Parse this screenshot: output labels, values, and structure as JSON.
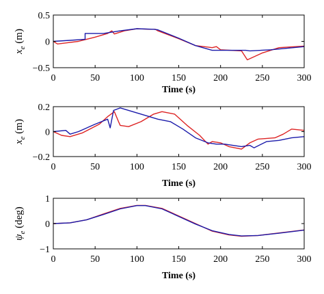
{
  "colors": {
    "series_1": "#dd2222",
    "series_2": "#1a1aaa",
    "axes": "#000000"
  },
  "chart_data": [
    {
      "type": "line",
      "ylabel_main": "x",
      "ylabel_sub": "e",
      "ylabel_unit": " (m)",
      "xlabel": "Time (s)",
      "xlim": [
        0,
        300
      ],
      "ylim": [
        -0.5,
        0.5
      ],
      "xticks": [
        0,
        50,
        100,
        150,
        200,
        250,
        300
      ],
      "xtick_labels": [
        "0",
        "50",
        "100",
        "150",
        "200",
        "250",
        "300"
      ],
      "yticks": [
        0.5,
        0,
        -0.5
      ],
      "ytick_labels": [
        "0.5",
        "0",
        "−0.5"
      ],
      "grid": false,
      "series": [
        {
          "color": "#dd2222",
          "points": [
            [
              0,
              0.0
            ],
            [
              5,
              -0.05
            ],
            [
              15,
              -0.03
            ],
            [
              30,
              0.0
            ],
            [
              50,
              0.08
            ],
            [
              65,
              0.15
            ],
            [
              70,
              0.2
            ],
            [
              73,
              0.14
            ],
            [
              85,
              0.2
            ],
            [
              100,
              0.24
            ],
            [
              115,
              0.23
            ],
            [
              122,
              0.23
            ],
            [
              125,
              0.2
            ],
            [
              150,
              0.05
            ],
            [
              170,
              -0.08
            ],
            [
              190,
              -0.12
            ],
            [
              195,
              -0.1
            ],
            [
              200,
              -0.16
            ],
            [
              225,
              -0.18
            ],
            [
              232,
              -0.35
            ],
            [
              250,
              -0.22
            ],
            [
              270,
              -0.12
            ],
            [
              300,
              -0.09
            ]
          ]
        },
        {
          "color": "#1a1aaa",
          "points": [
            [
              0,
              0.0
            ],
            [
              20,
              0.02
            ],
            [
              38,
              0.04
            ],
            [
              38,
              0.15
            ],
            [
              60,
              0.15
            ],
            [
              80,
              0.2
            ],
            [
              100,
              0.24
            ],
            [
              120,
              0.23
            ],
            [
              125,
              0.22
            ],
            [
              150,
              0.06
            ],
            [
              170,
              -0.08
            ],
            [
              190,
              -0.17
            ],
            [
              230,
              -0.17
            ],
            [
              235,
              -0.18
            ],
            [
              260,
              -0.16
            ],
            [
              300,
              -0.1
            ]
          ]
        }
      ]
    },
    {
      "type": "line",
      "ylabel_main": "x",
      "ylabel_sub": "e",
      "ylabel_unit": " (m)",
      "xlabel": "Time (s)",
      "xlim": [
        0,
        300
      ],
      "ylim": [
        -0.2,
        0.2
      ],
      "xticks": [
        0,
        50,
        100,
        150,
        200,
        250,
        300
      ],
      "xtick_labels": [
        "0",
        "50",
        "100",
        "150",
        "200",
        "250",
        "300"
      ],
      "yticks": [
        0.2,
        0,
        -0.2
      ],
      "ytick_labels": [
        "0.2",
        "0",
        "−0.2"
      ],
      "grid": false,
      "series": [
        {
          "color": "#dd2222",
          "points": [
            [
              0,
              0.0
            ],
            [
              10,
              -0.03
            ],
            [
              20,
              -0.04
            ],
            [
              35,
              -0.01
            ],
            [
              55,
              0.06
            ],
            [
              65,
              0.12
            ],
            [
              73,
              0.16
            ],
            [
              78,
              0.08
            ],
            [
              80,
              0.05
            ],
            [
              90,
              0.04
            ],
            [
              105,
              0.08
            ],
            [
              120,
              0.14
            ],
            [
              130,
              0.16
            ],
            [
              145,
              0.14
            ],
            [
              160,
              0.05
            ],
            [
              175,
              -0.03
            ],
            [
              185,
              -0.1
            ],
            [
              190,
              -0.08
            ],
            [
              200,
              -0.09
            ],
            [
              210,
              -0.12
            ],
            [
              225,
              -0.14
            ],
            [
              235,
              -0.09
            ],
            [
              245,
              -0.06
            ],
            [
              265,
              -0.05
            ],
            [
              275,
              -0.02
            ],
            [
              285,
              0.02
            ],
            [
              300,
              0.01
            ]
          ]
        },
        {
          "color": "#1a1aaa",
          "points": [
            [
              0,
              0.0
            ],
            [
              15,
              0.01
            ],
            [
              20,
              -0.02
            ],
            [
              30,
              0.0
            ],
            [
              50,
              0.06
            ],
            [
              65,
              0.1
            ],
            [
              68,
              0.03
            ],
            [
              72,
              0.17
            ],
            [
              80,
              0.19
            ],
            [
              95,
              0.16
            ],
            [
              110,
              0.13
            ],
            [
              125,
              0.1
            ],
            [
              140,
              0.08
            ],
            [
              155,
              0.02
            ],
            [
              170,
              -0.05
            ],
            [
              185,
              -0.09
            ],
            [
              195,
              -0.1
            ],
            [
              205,
              -0.1
            ],
            [
              225,
              -0.12
            ],
            [
              235,
              -0.11
            ],
            [
              240,
              -0.13
            ],
            [
              255,
              -0.08
            ],
            [
              270,
              -0.07
            ],
            [
              285,
              -0.05
            ],
            [
              300,
              -0.04
            ]
          ]
        }
      ]
    },
    {
      "type": "line",
      "ylabel_main": "ψ",
      "ylabel_sub": "e",
      "ylabel_unit": " (deg)",
      "xlabel": "Time (s)",
      "xlim": [
        0,
        300
      ],
      "ylim": [
        -1,
        1
      ],
      "xticks": [
        0,
        50,
        100,
        150,
        200,
        250,
        300
      ],
      "xtick_labels": [
        "0",
        "50",
        "100",
        "150",
        "200",
        "250",
        "300"
      ],
      "yticks": [
        1,
        0,
        -1
      ],
      "ytick_labels": [
        "1",
        "0",
        "−1"
      ],
      "grid": false,
      "series": [
        {
          "color": "#dd2222",
          "points": [
            [
              0,
              0.0
            ],
            [
              20,
              0.03
            ],
            [
              40,
              0.15
            ],
            [
              60,
              0.38
            ],
            [
              80,
              0.6
            ],
            [
              100,
              0.72
            ],
            [
              110,
              0.72
            ],
            [
              130,
              0.6
            ],
            [
              150,
              0.3
            ],
            [
              170,
              0.0
            ],
            [
              190,
              -0.3
            ],
            [
              210,
              -0.45
            ],
            [
              225,
              -0.5
            ],
            [
              245,
              -0.47
            ],
            [
              270,
              -0.37
            ],
            [
              300,
              -0.25
            ]
          ]
        },
        {
          "color": "#1a1aaa",
          "points": [
            [
              0,
              0.0
            ],
            [
              20,
              0.03
            ],
            [
              40,
              0.15
            ],
            [
              60,
              0.36
            ],
            [
              80,
              0.58
            ],
            [
              100,
              0.71
            ],
            [
              110,
              0.71
            ],
            [
              130,
              0.58
            ],
            [
              150,
              0.28
            ],
            [
              170,
              -0.02
            ],
            [
              190,
              -0.28
            ],
            [
              210,
              -0.43
            ],
            [
              225,
              -0.49
            ],
            [
              245,
              -0.47
            ],
            [
              270,
              -0.38
            ],
            [
              300,
              -0.26
            ]
          ]
        }
      ]
    }
  ]
}
